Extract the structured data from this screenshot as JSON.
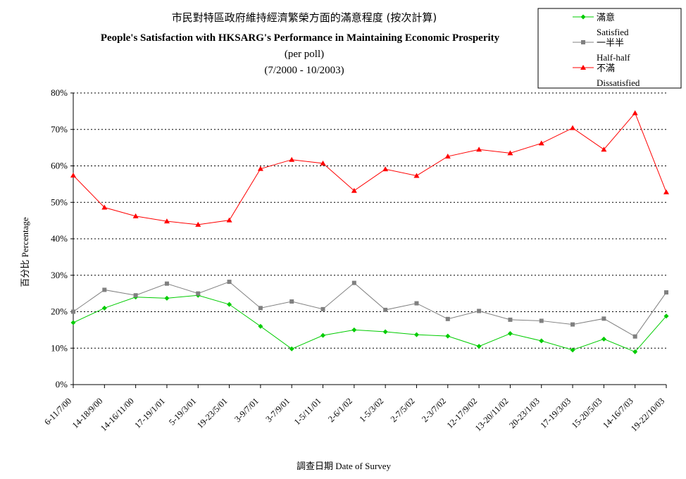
{
  "chart_data": {
    "type": "line",
    "title_zh": "市民對特區政府維持經濟繁榮方面的滿意程度 (按次計算)",
    "title_en": "People's Satisfaction with HKSARG's Performance in Maintaining Economic Prosperity",
    "subtitle_poll": "(per poll)",
    "subtitle_range": "(7/2000 - 10/2003)",
    "xlabel": "調查日期 Date of Survey",
    "ylabel": "百分比 Percentage",
    "ylim": [
      0,
      80
    ],
    "y_ticks": [
      "0%",
      "10%",
      "20%",
      "30%",
      "40%",
      "50%",
      "60%",
      "70%",
      "80%"
    ],
    "grid": "horizontal dotted",
    "legend_position": "top-right",
    "categories": [
      "6-11/7/00",
      "14-18/9/00",
      "14-16/11/00",
      "17-19/1/01",
      "5-19/3/01",
      "19-23/5/01",
      "3-9/7/01",
      "3-7/9/01",
      "1-5/11/01",
      "2-6/1/02",
      "1-5/3/02",
      "2-7/5/02",
      "2-3/7/02",
      "12-17/9/02",
      "13-20/11/02",
      "20-23/1/03",
      "17-19/3/03",
      "15-20/5/03",
      "14-16/7/03",
      "19-22/10/03"
    ],
    "series": [
      {
        "name_zh": "滿意",
        "name_en": "Satisfied",
        "color": "#00cc00",
        "marker": "diamond",
        "values": [
          17.0,
          21.0,
          24.0,
          23.7,
          24.5,
          22.0,
          16.0,
          9.8,
          13.5,
          15.0,
          14.5,
          13.7,
          13.3,
          10.5,
          14.0,
          12.0,
          9.5,
          12.5,
          9.0,
          18.8
        ]
      },
      {
        "name_zh": "一半半",
        "name_en": "Half-half",
        "color": "#808080",
        "marker": "square",
        "values": [
          20.0,
          26.0,
          24.5,
          27.7,
          25.0,
          28.2,
          21.0,
          22.8,
          20.7,
          27.9,
          20.5,
          22.3,
          18.0,
          20.2,
          17.8,
          17.5,
          16.5,
          18.1,
          13.2,
          25.3
        ]
      },
      {
        "name_zh": "不滿",
        "name_en": "Dissatisfied",
        "color": "#ff0000",
        "marker": "triangle",
        "values": [
          57.4,
          48.6,
          46.2,
          44.8,
          43.9,
          45.1,
          59.2,
          61.7,
          60.7,
          53.2,
          59.1,
          57.3,
          62.6,
          64.5,
          63.5,
          66.2,
          70.4,
          64.5,
          74.5,
          52.8
        ]
      }
    ]
  }
}
